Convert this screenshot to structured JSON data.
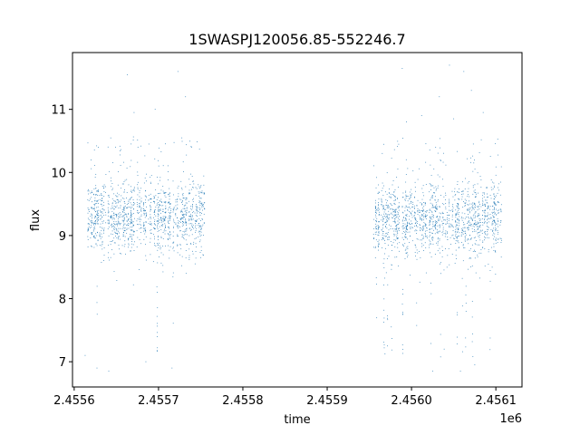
{
  "chart_data": {
    "type": "scatter",
    "title": "1SWASPJ120056.85-552246.7",
    "xlabel": "time",
    "ylabel": "flux",
    "x_offset_label": "1e6",
    "xlim": [
      2455598,
      2456131
    ],
    "ylim": [
      6.6,
      11.9
    ],
    "x_ticks": [
      2455600,
      2455700,
      2455800,
      2455900,
      2456000,
      2456100
    ],
    "x_tick_labels": [
      "2.4556",
      "2.4557",
      "2.4558",
      "2.4559",
      "2.4560",
      "2.4561"
    ],
    "y_ticks": [
      7,
      8,
      9,
      10,
      11
    ],
    "y_tick_labels": [
      "7",
      "8",
      "9",
      "10",
      "11"
    ],
    "grid": false,
    "legend": "none",
    "marker_color": "#1f77b4",
    "series": [
      {
        "segments": [
          {
            "x_start": 2455614,
            "x_end": 2455755,
            "median": 9.3
          },
          {
            "x_start": 2455955,
            "x_end": 2456107,
            "median": 9.25
          }
        ],
        "outliers": [
          {
            "x": 2455613,
            "y": 7.1
          },
          {
            "x": 2455627,
            "y": 6.9
          },
          {
            "x": 2455641,
            "y": 6.85
          },
          {
            "x": 2455663,
            "y": 11.55
          },
          {
            "x": 2455671,
            "y": 10.95
          },
          {
            "x": 2455685,
            "y": 7.0
          },
          {
            "x": 2455696,
            "y": 11.0
          },
          {
            "x": 2455716,
            "y": 6.9
          },
          {
            "x": 2455723,
            "y": 11.6
          },
          {
            "x": 2455732,
            "y": 11.2
          },
          {
            "x": 2455989,
            "y": 11.65
          },
          {
            "x": 2455994,
            "y": 10.8
          },
          {
            "x": 2456012,
            "y": 10.9
          },
          {
            "x": 2456025,
            "y": 6.85
          },
          {
            "x": 2456033,
            "y": 11.2
          },
          {
            "x": 2456045,
            "y": 11.7
          },
          {
            "x": 2456050,
            "y": 10.85
          },
          {
            "x": 2456058,
            "y": 6.85
          },
          {
            "x": 2456062,
            "y": 11.6
          },
          {
            "x": 2456071,
            "y": 11.3
          },
          {
            "x": 2456075,
            "y": 6.95
          },
          {
            "x": 2456085,
            "y": 10.95
          }
        ]
      }
    ]
  }
}
